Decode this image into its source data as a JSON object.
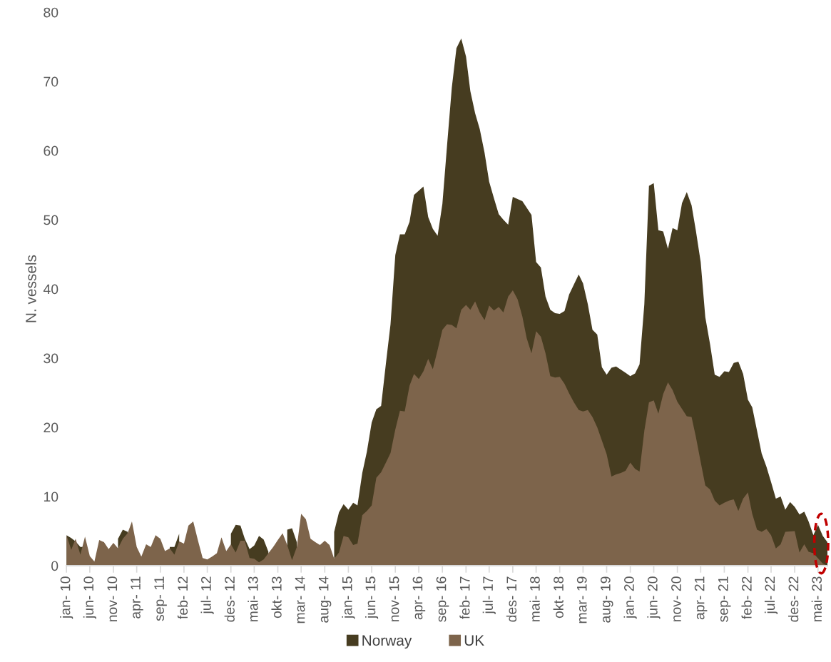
{
  "chart_data": {
    "type": "area",
    "ylabel": "N. vessels",
    "ylim": [
      0,
      80
    ],
    "yticks": [
      0,
      10,
      20,
      30,
      40,
      50,
      60,
      70,
      80
    ],
    "grid": false,
    "legend": "bottom",
    "xlim": [
      "2010-01",
      "2023-07"
    ],
    "xticks": [
      {
        "value": "2010-01",
        "label": "jan- 10"
      },
      {
        "value": "2010-06",
        "label": "jun- 10"
      },
      {
        "value": "2010-11",
        "label": "nov- 10"
      },
      {
        "value": "2011-04",
        "label": "apr- 11"
      },
      {
        "value": "2011-09",
        "label": "sep- 11"
      },
      {
        "value": "2012-02",
        "label": "feb- 12"
      },
      {
        "value": "2012-07",
        "label": "jul- 12"
      },
      {
        "value": "2012-12",
        "label": "des- 12"
      },
      {
        "value": "2013-05",
        "label": "mai- 13"
      },
      {
        "value": "2013-10",
        "label": "okt- 13"
      },
      {
        "value": "2014-03",
        "label": "mar- 14"
      },
      {
        "value": "2014-08",
        "label": "aug- 14"
      },
      {
        "value": "2015-01",
        "label": "jan- 15"
      },
      {
        "value": "2015-06",
        "label": "jun- 15"
      },
      {
        "value": "2015-11",
        "label": "nov- 15"
      },
      {
        "value": "2016-04",
        "label": "apr- 16"
      },
      {
        "value": "2016-09",
        "label": "sep- 16"
      },
      {
        "value": "2017-02",
        "label": "feb- 17"
      },
      {
        "value": "2017-07",
        "label": "jul- 17"
      },
      {
        "value": "2017-12",
        "label": "des- 17"
      },
      {
        "value": "2018-05",
        "label": "mai- 18"
      },
      {
        "value": "2018-10",
        "label": "okt- 18"
      },
      {
        "value": "2019-03",
        "label": "mar- 19"
      },
      {
        "value": "2019-08",
        "label": "aug- 19"
      },
      {
        "value": "2020-01",
        "label": "jan- 20"
      },
      {
        "value": "2020-06",
        "label": "jun- 20"
      },
      {
        "value": "2020-11",
        "label": "nov- 20"
      },
      {
        "value": "2021-04",
        "label": "apr- 21"
      },
      {
        "value": "2021-09",
        "label": "sep- 21"
      },
      {
        "value": "2022-02",
        "label": "feb- 22"
      },
      {
        "value": "2022-07",
        "label": "jul- 22"
      },
      {
        "value": "2022-12",
        "label": "des- 22"
      },
      {
        "value": "2023-05",
        "label": "mai- 23"
      }
    ],
    "series": [
      {
        "name": "Norway",
        "color": "#463c20",
        "x": [
          "2010-01",
          "2010-02",
          "2010-03",
          "2010-04",
          "2010-05",
          "2010-06",
          "2010-12",
          "2011-01",
          "2011-02",
          "2011-03",
          "2011-11",
          "2011-12",
          "2012-01",
          "2012-02",
          "2012-12",
          "2013-01",
          "2013-02",
          "2013-03",
          "2013-04",
          "2013-05",
          "2013-06",
          "2013-07",
          "2013-08",
          "2013-09",
          "2013-12",
          "2014-01",
          "2014-02",
          "2014-03",
          "2014-10",
          "2014-11",
          "2014-12",
          "2015-01",
          "2015-02",
          "2015-03",
          "2015-04",
          "2015-05",
          "2015-06",
          "2015-07",
          "2015-08",
          "2015-09",
          "2015-10",
          "2015-11",
          "2015-12",
          "2016-01",
          "2016-02",
          "2016-03",
          "2016-05",
          "2016-06",
          "2016-07",
          "2016-08",
          "2016-09",
          "2016-10",
          "2016-11",
          "2016-12",
          "2017-01",
          "2017-02",
          "2017-03",
          "2017-04",
          "2017-05",
          "2017-06",
          "2017-07",
          "2017-08",
          "2017-09",
          "2017-10",
          "2017-11",
          "2017-12",
          "2018-02",
          "2018-04",
          "2018-05",
          "2018-06",
          "2018-07",
          "2018-08",
          "2018-09",
          "2018-10",
          "2018-11",
          "2018-12",
          "2019-02",
          "2019-03",
          "2019-04",
          "2019-05",
          "2019-06",
          "2019-07",
          "2019-08",
          "2019-09",
          "2019-10",
          "2019-12",
          "2020-01",
          "2020-02",
          "2020-03",
          "2020-04",
          "2020-05",
          "2020-06",
          "2020-07",
          "2020-08",
          "2020-09",
          "2020-10",
          "2020-11",
          "2020-12",
          "2021-01",
          "2021-02",
          "2021-03",
          "2021-04",
          "2021-05",
          "2021-06",
          "2021-07",
          "2021-08",
          "2021-09",
          "2021-10",
          "2021-11",
          "2021-12",
          "2022-01",
          "2022-02",
          "2022-03",
          "2022-04",
          "2022-05",
          "2022-06",
          "2022-07",
          "2022-08",
          "2022-09",
          "2022-10",
          "2022-11",
          "2022-12",
          "2023-01",
          "2023-02",
          "2023-03",
          "2023-04",
          "2023-05",
          "2023-06",
          "2023-07"
        ],
        "values": [
          4.4,
          4.0,
          3.5,
          2.7,
          2.7,
          null,
          3.9,
          5.2,
          4.9,
          null,
          2.7,
          2.7,
          4.6,
          null,
          4.6,
          5.9,
          5.8,
          3.9,
          2.4,
          2.9,
          4.3,
          3.8,
          2.0,
          null,
          5.2,
          5.4,
          3.4,
          null,
          4.9,
          7.7,
          8.9,
          8.1,
          9.1,
          8.7,
          13.4,
          16.5,
          20.7,
          22.6,
          23.1,
          29.2,
          34.9,
          44.9,
          47.9,
          47.9,
          49.7,
          53.6,
          54.8,
          50.4,
          48.7,
          47.7,
          52.3,
          60.7,
          69.1,
          74.8,
          76.2,
          73.6,
          68.6,
          65.4,
          63.1,
          59.7,
          55.5,
          53.1,
          50.8,
          50.0,
          49.3,
          53.3,
          52.7,
          50.7,
          43.9,
          43.1,
          38.9,
          37.0,
          36.5,
          36.4,
          36.8,
          39.2,
          42.1,
          40.8,
          37.8,
          34.1,
          33.4,
          28.7,
          27.6,
          28.6,
          28.8,
          27.9,
          27.4,
          27.8,
          29.1,
          37.8,
          54.9,
          55.3,
          48.5,
          48.3,
          45.8,
          48.8,
          48.5,
          52.4,
          54.0,
          52.1,
          48.4,
          43.9,
          35.9,
          32.0,
          27.6,
          27.3,
          28.1,
          28.0,
          29.3,
          29.5,
          27.7,
          24.0,
          22.9,
          19.5,
          16.2,
          14.3,
          12.1,
          9.7,
          10.0,
          8.1,
          9.2,
          8.5,
          7.4,
          7.8,
          6.4,
          4.4,
          5.9,
          4.3,
          3.4
        ]
      },
      {
        "name": "UK",
        "color": "#7d644b",
        "x": [
          "2010-01",
          "2010-02",
          "2010-03",
          "2010-04",
          "2010-05",
          "2010-06",
          "2010-07",
          "2010-08",
          "2010-09",
          "2010-10",
          "2010-11",
          "2010-12",
          "2011-01",
          "2011-02",
          "2011-03",
          "2011-04",
          "2011-05",
          "2011-06",
          "2011-07",
          "2011-08",
          "2011-09",
          "2011-10",
          "2011-11",
          "2011-12",
          "2012-01",
          "2012-02",
          "2012-03",
          "2012-04",
          "2012-05",
          "2012-06",
          "2012-07",
          "2012-08",
          "2012-09",
          "2012-10",
          "2012-11",
          "2012-12",
          "2013-01",
          "2013-02",
          "2013-03",
          "2013-04",
          "2013-05",
          "2013-06",
          "2013-07",
          "2013-08",
          "2013-09",
          "2013-10",
          "2013-11",
          "2013-12",
          "2014-01",
          "2014-02",
          "2014-03",
          "2014-04",
          "2014-05",
          "2014-06",
          "2014-07",
          "2014-08",
          "2014-09",
          "2014-10",
          "2014-11",
          "2014-12",
          "2015-01",
          "2015-02",
          "2015-03",
          "2015-04",
          "2015-05",
          "2015-06",
          "2015-07",
          "2015-08",
          "2015-09",
          "2015-10",
          "2015-11",
          "2015-12",
          "2016-01",
          "2016-02",
          "2016-03",
          "2016-04",
          "2016-05",
          "2016-06",
          "2016-07",
          "2016-08",
          "2016-09",
          "2016-10",
          "2016-11",
          "2016-12",
          "2017-01",
          "2017-02",
          "2017-03",
          "2017-04",
          "2017-05",
          "2017-06",
          "2017-07",
          "2017-08",
          "2017-09",
          "2017-10",
          "2017-11",
          "2017-12",
          "2018-01",
          "2018-02",
          "2018-03",
          "2018-04",
          "2018-05",
          "2018-06",
          "2018-07",
          "2018-08",
          "2018-09",
          "2018-10",
          "2018-11",
          "2018-12",
          "2019-01",
          "2019-02",
          "2019-03",
          "2019-04",
          "2019-05",
          "2019-06",
          "2019-07",
          "2019-08",
          "2019-09",
          "2019-10",
          "2019-11",
          "2019-12",
          "2020-01",
          "2020-02",
          "2020-03",
          "2020-04",
          "2020-05",
          "2020-06",
          "2020-07",
          "2020-08",
          "2020-09",
          "2020-10",
          "2020-11",
          "2021-01",
          "2021-02",
          "2021-03",
          "2021-04",
          "2021-05",
          "2021-06",
          "2021-07",
          "2021-08",
          "2021-09",
          "2021-10",
          "2021-11",
          "2021-12",
          "2022-01",
          "2022-02",
          "2022-03",
          "2022-04",
          "2022-05",
          "2022-06",
          "2022-07",
          "2022-08",
          "2022-09",
          "2022-10",
          "2022-12",
          "2023-01",
          "2023-02",
          "2023-03",
          "2023-04",
          "2023-06",
          "2023-07"
        ],
        "values": [
          4.4,
          2.3,
          3.9,
          1.6,
          4.2,
          1.4,
          0.6,
          3.7,
          3.4,
          2.4,
          3.3,
          2.5,
          3.9,
          4.7,
          6.4,
          2.7,
          1.3,
          3.1,
          2.7,
          4.4,
          3.9,
          2.1,
          2.5,
          1.6,
          3.5,
          3.2,
          5.8,
          6.4,
          3.7,
          1.1,
          0.9,
          1.3,
          1.8,
          4.1,
          2.1,
          3.1,
          1.9,
          3.6,
          3.6,
          1.1,
          1.0,
          0.5,
          0.9,
          1.8,
          2.7,
          3.7,
          4.7,
          3.0,
          0.8,
          2.7,
          7.5,
          6.7,
          3.9,
          3.4,
          3.0,
          3.6,
          3.0,
          1.0,
          1.9,
          4.3,
          4.1,
          3.0,
          3.2,
          7.3,
          7.9,
          8.7,
          12.7,
          13.5,
          14.9,
          16.3,
          19.7,
          22.4,
          22.3,
          26.0,
          27.7,
          27.0,
          28.1,
          29.9,
          28.4,
          31.2,
          34.1,
          34.9,
          34.8,
          34.3,
          37.0,
          37.7,
          37.0,
          38.2,
          36.6,
          35.5,
          37.6,
          36.9,
          37.4,
          36.6,
          38.9,
          39.8,
          38.5,
          36.0,
          32.9,
          30.7,
          33.9,
          33.1,
          30.7,
          27.4,
          27.2,
          27.3,
          26.3,
          24.9,
          23.6,
          22.5,
          22.3,
          22.5,
          21.5,
          20.0,
          18.1,
          16.1,
          12.9,
          13.2,
          13.4,
          13.7,
          14.9,
          14.0,
          13.6,
          19.5,
          23.6,
          23.9,
          22.0,
          24.8,
          26.5,
          25.4,
          23.7,
          21.6,
          21.5,
          18.6,
          15.0,
          11.6,
          11.0,
          9.4,
          8.7,
          9.1,
          9.4,
          9.6,
          7.9,
          9.7,
          10.6,
          7.5,
          5.2,
          4.9,
          5.3,
          4.4,
          2.5,
          3.1,
          4.9,
          5.0,
          1.9,
          3.1,
          2.0,
          1.8,
          0.3,
          0
        ]
      }
    ]
  }
}
